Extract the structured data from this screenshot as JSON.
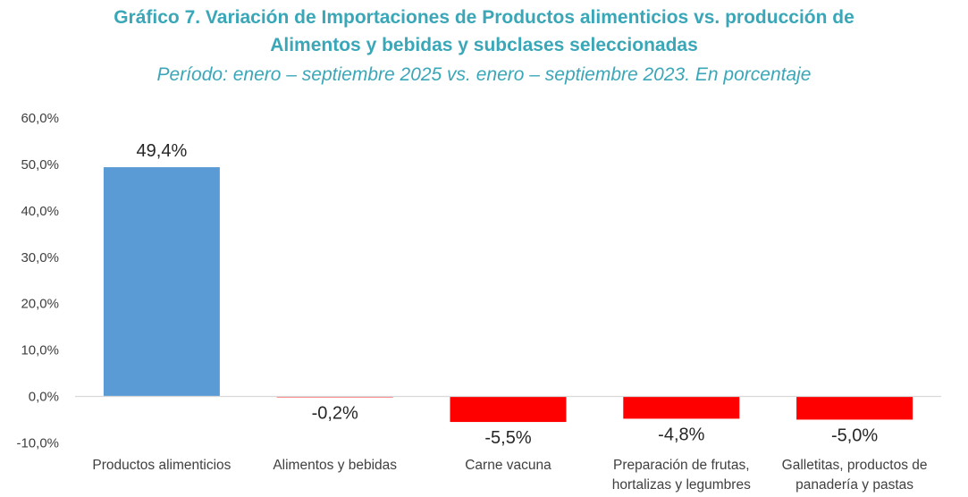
{
  "header": {
    "title_line1": "Gráfico 7. Variación de Importaciones de Productos alimenticios vs. producción de",
    "title_line2": "Alimentos y bebidas y subclases seleccionadas",
    "subtitle": "Período: enero – septiembre 2025 vs. enero – septiembre 2023. En porcentaje"
  },
  "colors": {
    "title": "#3aa7b8",
    "positive_bar": "#5b9bd5",
    "negative_bar": "#ff0000",
    "axis": "#d9d9d9"
  },
  "chart_data": {
    "type": "bar",
    "title": "Gráfico 7. Variación de Importaciones de Productos alimenticios vs. producción de Alimentos y bebidas y subclases seleccionadas",
    "subtitle": "Período: enero – septiembre 2025 vs. enero – septiembre 2023. En porcentaje",
    "categories": [
      [
        "Productos alimenticios"
      ],
      [
        "Alimentos y bebidas"
      ],
      [
        "Carne vacuna"
      ],
      [
        "Preparación de frutas,",
        "hortalizas y legumbres"
      ],
      [
        "Galletitas, productos de",
        "panadería y pastas"
      ]
    ],
    "values": [
      49.4,
      -0.2,
      -5.5,
      -4.8,
      -5.0
    ],
    "data_labels": [
      "49,4%",
      "-0,2%",
      "-5,5%",
      "-4,8%",
      "-5,0%"
    ],
    "yticks": [
      60,
      50,
      40,
      30,
      20,
      10,
      0,
      -10
    ],
    "ytick_labels": [
      "60,0%",
      "50,0%",
      "40,0%",
      "30,0%",
      "20,0%",
      "10,0%",
      "0,0%",
      "-10,0%"
    ],
    "ylim": [
      -10,
      60
    ],
    "xlabel": "",
    "ylabel": "",
    "grid": false,
    "legend": "none"
  }
}
